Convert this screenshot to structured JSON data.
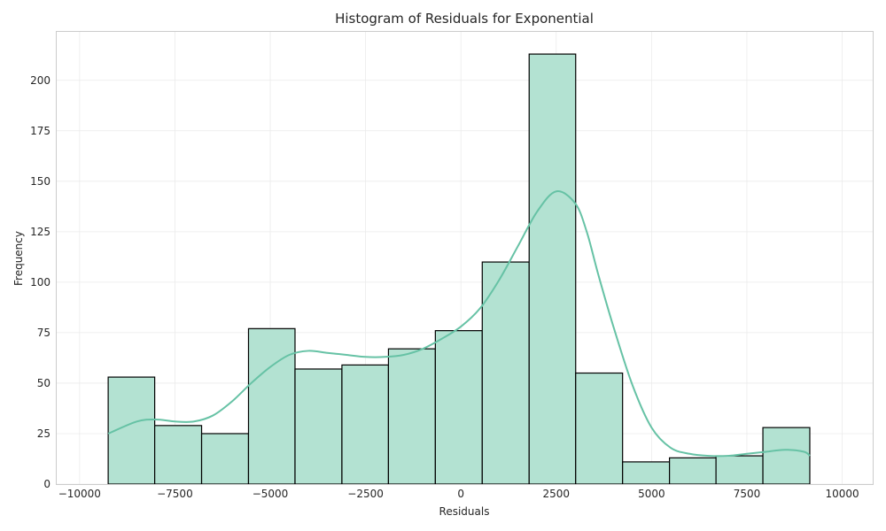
{
  "chart_data": {
    "type": "bar",
    "subtype": "histogram",
    "title": "Histogram of Residuals for Exponential",
    "xlabel": "Residuals",
    "ylabel": "Frequency",
    "xlim": [
      -10600,
      10800
    ],
    "ylim": [
      0,
      224
    ],
    "x_ticks": [
      -10000,
      -7500,
      -5000,
      -2500,
      0,
      2500,
      5000,
      7500,
      10000
    ],
    "x_tick_labels": [
      "−10000",
      "−7500",
      "−5000",
      "−2500",
      "0",
      "2500",
      "5000",
      "7500",
      "10000"
    ],
    "y_ticks": [
      0,
      25,
      50,
      75,
      100,
      125,
      150,
      175,
      200
    ],
    "y_tick_labels": [
      "0",
      "25",
      "50",
      "75",
      "100",
      "125",
      "150",
      "175",
      "200"
    ],
    "grid": true,
    "bins": [
      {
        "x0": -9250,
        "x1": -8030,
        "count": 53
      },
      {
        "x0": -8030,
        "x1": -6800,
        "count": 29
      },
      {
        "x0": -6800,
        "x1": -5570,
        "count": 25
      },
      {
        "x0": -5570,
        "x1": -4350,
        "count": 77
      },
      {
        "x0": -4350,
        "x1": -3120,
        "count": 57
      },
      {
        "x0": -3120,
        "x1": -1900,
        "count": 59
      },
      {
        "x0": -1900,
        "x1": -670,
        "count": 67
      },
      {
        "x0": -670,
        "x1": 560,
        "count": 76
      },
      {
        "x0": 560,
        "x1": 1790,
        "count": 110
      },
      {
        "x0": 1790,
        "x1": 3010,
        "count": 213
      },
      {
        "x0": 3010,
        "x1": 4240,
        "count": 55
      },
      {
        "x0": 4240,
        "x1": 5470,
        "count": 11
      },
      {
        "x0": 5470,
        "x1": 6690,
        "count": 13
      },
      {
        "x0": 6690,
        "x1": 7920,
        "count": 14
      },
      {
        "x0": 7920,
        "x1": 9150,
        "count": 28
      }
    ],
    "kde": {
      "x": [
        -9250,
        -8500,
        -8000,
        -7500,
        -7000,
        -6500,
        -6000,
        -5500,
        -5000,
        -4500,
        -4000,
        -3500,
        -3000,
        -2500,
        -2000,
        -1500,
        -1000,
        -500,
        0,
        500,
        1000,
        1500,
        2000,
        2500,
        3000,
        3300,
        3600,
        4000,
        4500,
        5000,
        5500,
        6000,
        6500,
        7000,
        7500,
        8000,
        8500,
        9000,
        9150
      ],
      "y": [
        25,
        31,
        32,
        31,
        31,
        34,
        41,
        50,
        58,
        64,
        66,
        65,
        64,
        63,
        63,
        64,
        67,
        72,
        78,
        87,
        101,
        118,
        135,
        145,
        139,
        125,
        104,
        78,
        49,
        28,
        18,
        15,
        14,
        14,
        15,
        16,
        17,
        16,
        14
      ]
    },
    "colors": {
      "bar_fill": "#b3e2d2",
      "bar_edge": "#000000",
      "kde_line": "#66c2a5",
      "grid": "#ebebeb",
      "frame": "#cccccc"
    }
  }
}
